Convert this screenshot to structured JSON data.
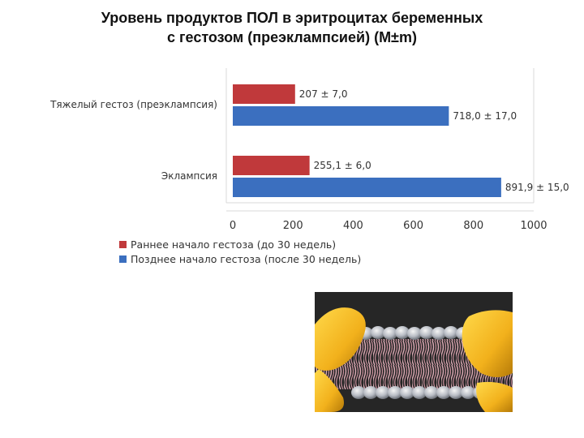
{
  "title": {
    "line1": "Уровень продуктов ПОЛ в эритроцитах беременных",
    "line2": "с гестозом (преэклампсией) (M±m)"
  },
  "chart_data": {
    "type": "bar",
    "orientation": "horizontal",
    "categories": [
      "Тяжелый гестоз (преэклампсия)",
      "Эклампсия"
    ],
    "series": [
      {
        "name": "Раннее начало гестоза (до 30 недель)",
        "color": "#c0393b",
        "values": [
          207,
          255.1
        ],
        "labels": [
          "207 ± 7,0",
          "255,1 ± 6,0"
        ]
      },
      {
        "name": "Позднее начало гестоза (после 30 недель)",
        "color": "#3b6fbf",
        "values": [
          718,
          891.9
        ],
        "labels": [
          "718,0 ± 17,0",
          "891,9 ± 15,0"
        ]
      }
    ],
    "xlim": [
      0,
      1000
    ],
    "xticks": [
      0,
      200,
      400,
      600,
      800,
      1000
    ],
    "legend": "bottom-left",
    "grid": false
  },
  "image": {
    "icon": "lipid-bilayer-membrane-illustration"
  }
}
